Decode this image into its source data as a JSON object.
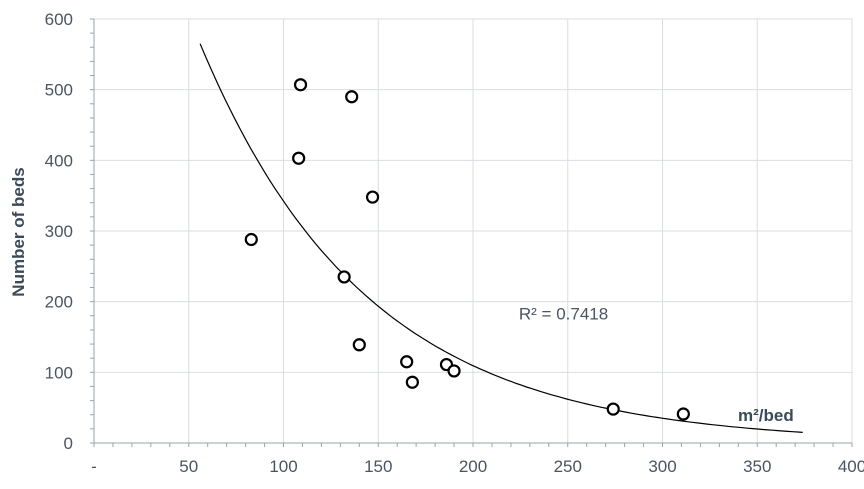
{
  "chart_data": {
    "type": "scatter",
    "title": "",
    "xlabel": "m²/bed",
    "ylabel": "Number of beds",
    "xlim": [
      0,
      400
    ],
    "ylim": [
      0,
      600
    ],
    "x_ticks": [
      "-",
      "50",
      "100",
      "150",
      "200",
      "250",
      "300",
      "350",
      "400"
    ],
    "x_tick_values": [
      0,
      50,
      100,
      150,
      200,
      250,
      300,
      350,
      400
    ],
    "y_ticks": [
      "0",
      "100",
      "200",
      "300",
      "400",
      "500",
      "600"
    ],
    "y_tick_values": [
      0,
      100,
      200,
      300,
      400,
      500,
      600
    ],
    "grid": true,
    "series": [
      {
        "points": [
          {
            "x": 109,
            "y": 507
          },
          {
            "x": 136,
            "y": 490
          },
          {
            "x": 108,
            "y": 403
          },
          {
            "x": 147,
            "y": 348
          },
          {
            "x": 83,
            "y": 288
          },
          {
            "x": 132,
            "y": 235
          },
          {
            "x": 140,
            "y": 139
          },
          {
            "x": 165,
            "y": 115
          },
          {
            "x": 168,
            "y": 86
          },
          {
            "x": 186,
            "y": 111
          },
          {
            "x": 190,
            "y": 102
          },
          {
            "x": 274,
            "y": 48
          },
          {
            "x": 311,
            "y": 41
          }
        ]
      }
    ],
    "trendline": {
      "type": "exponential",
      "a": 1070,
      "b": -0.0114,
      "x_range": [
        56,
        374
      ],
      "r2_label": "R² = 0.7418",
      "r2_label_x": 220,
      "r2_label_y": 183
    },
    "colors": {
      "axis_text": "#4a5561",
      "label_text": "#3b4a5a",
      "grid": "#d9dde2",
      "axis_line": "#9aa3ad",
      "marker": "#000000",
      "trend": "#000000"
    }
  }
}
